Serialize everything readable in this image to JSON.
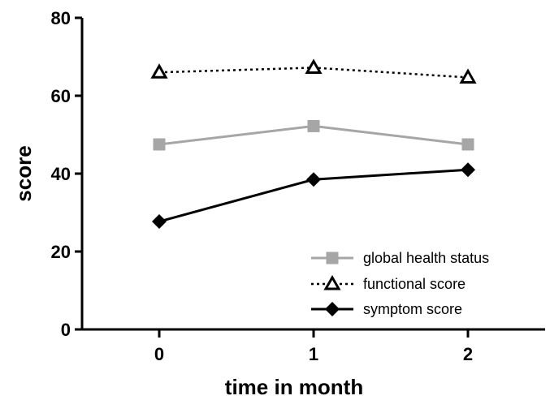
{
  "chart_data": {
    "type": "line",
    "xlabel": "time in month",
    "ylabel": "score",
    "x": [
      0,
      1,
      2
    ],
    "x_tick_labels": [
      "0",
      "1",
      "2"
    ],
    "xlim": [
      -0.5,
      2.5
    ],
    "ylim": [
      0,
      80
    ],
    "y_ticks": [
      0,
      20,
      40,
      60,
      80
    ],
    "grid": false,
    "legend_position": "bottom-right",
    "series": [
      {
        "name": "global health status",
        "values": [
          47.5,
          52.2,
          47.5
        ],
        "color": "#a6a6a6",
        "marker": "square",
        "line_style": "solid"
      },
      {
        "name": "functional score",
        "values": [
          66.0,
          67.2,
          64.7
        ],
        "color": "#000000",
        "marker": "open-triangle",
        "line_style": "dotted"
      },
      {
        "name": "symptom score",
        "values": [
          27.7,
          38.5,
          41.0
        ],
        "color": "#000000",
        "marker": "diamond",
        "line_style": "solid"
      }
    ]
  }
}
